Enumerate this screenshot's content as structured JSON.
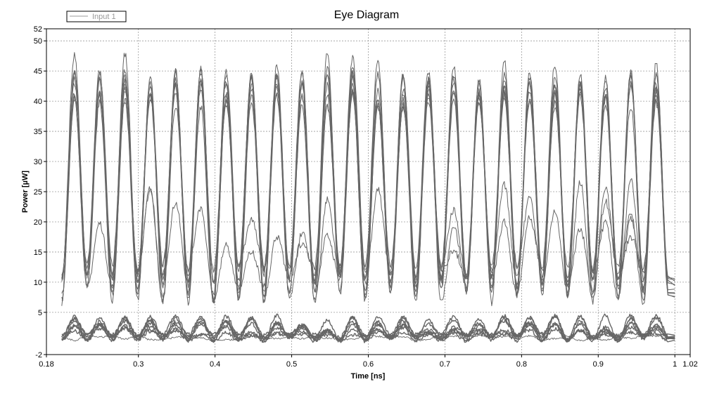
{
  "chart_data": {
    "type": "line",
    "title": "Eye Diagram",
    "xlabel": "Time [ns]",
    "ylabel": "Power [µW]",
    "xlim": [
      0.18,
      1.02
    ],
    "ylim": [
      -2,
      52
    ],
    "x_ticks": [
      0.18,
      0.3,
      0.4,
      0.5,
      0.6,
      0.7,
      0.8,
      0.9,
      1,
      1.02
    ],
    "x_tick_labels": [
      "0.18",
      "0.3",
      "0.4",
      "0.5",
      "0.6",
      "0.7",
      "0.8",
      "0.9",
      "1",
      "1.02"
    ],
    "y_ticks": [
      -2,
      5,
      10,
      15,
      20,
      25,
      30,
      35,
      40,
      45,
      50,
      52
    ],
    "y_tick_labels": [
      "-2",
      "5",
      "10",
      "15",
      "20",
      "25",
      "30",
      "35",
      "40",
      "45",
      "50",
      "52"
    ],
    "grid": true,
    "legend_position": "top-left",
    "series": [
      {
        "name": "Input 1",
        "color": "#666666",
        "x_range": [
          0.2,
          1.0
        ],
        "bit_period": 0.0165,
        "high_level_range": [
          40,
          50
        ],
        "low_level_range": [
          0,
          5
        ],
        "baseline": 0
      }
    ]
  }
}
